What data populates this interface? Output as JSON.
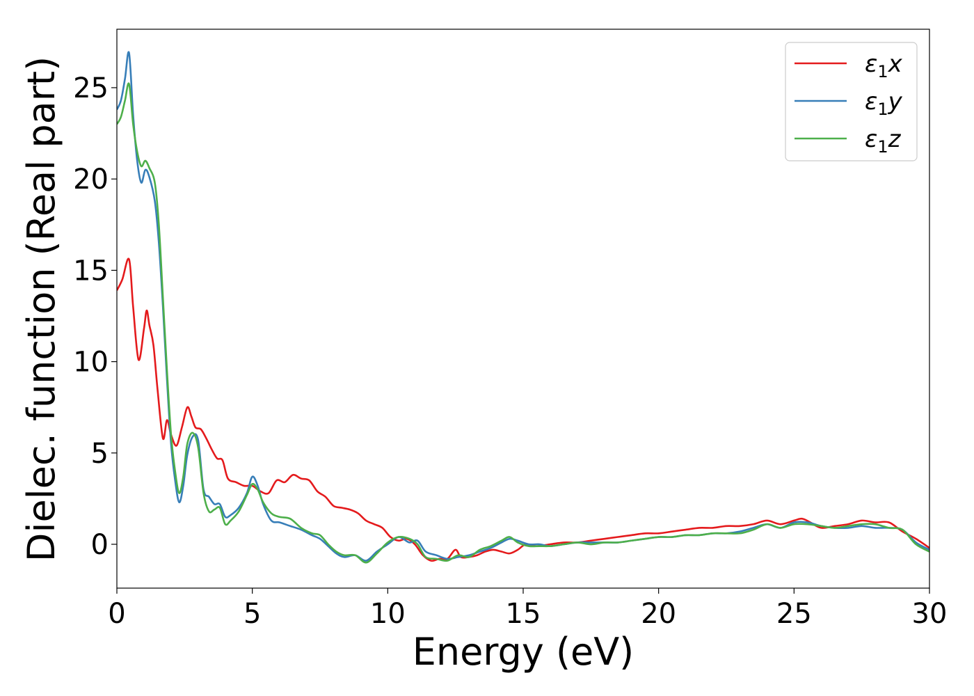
{
  "chart_data": {
    "type": "line",
    "title": "",
    "xlabel": "Energy (eV)",
    "ylabel": "Dielec. function (Real part)",
    "xlim": [
      0,
      30
    ],
    "ylim": [
      -2.4,
      28.2
    ],
    "xticks": [
      0,
      5,
      10,
      15,
      20,
      25,
      30
    ],
    "yticks": [
      0,
      5,
      10,
      15,
      20,
      25
    ],
    "grid": false,
    "legend_position": "top-right",
    "series": [
      {
        "name": "ε₁x",
        "legend_base": "ε",
        "legend_sub": "1",
        "legend_suffix": "x",
        "color": "#e41a1c",
        "x": [
          0,
          0.2,
          0.45,
          0.6,
          0.8,
          1.0,
          1.1,
          1.2,
          1.35,
          1.5,
          1.7,
          1.85,
          2.0,
          2.2,
          2.4,
          2.6,
          2.75,
          2.9,
          3.1,
          3.3,
          3.5,
          3.7,
          3.9,
          4.1,
          4.4,
          4.7,
          5.0,
          5.3,
          5.6,
          5.9,
          6.2,
          6.5,
          6.8,
          7.1,
          7.4,
          7.7,
          8.0,
          8.3,
          8.6,
          8.9,
          9.2,
          9.5,
          9.8,
          10.1,
          10.4,
          10.7,
          11.0,
          11.3,
          11.6,
          11.9,
          12.2,
          12.5,
          12.7,
          13.0,
          13.3,
          13.6,
          13.9,
          14.2,
          14.5,
          14.8,
          15.1,
          15.5,
          16.0,
          16.5,
          17.0,
          17.5,
          18.0,
          18.5,
          19.0,
          19.5,
          20.0,
          20.5,
          21.0,
          21.5,
          22.0,
          22.5,
          23.0,
          23.5,
          24.0,
          24.5,
          25.0,
          25.3,
          25.6,
          26.0,
          26.5,
          27.0,
          27.5,
          28.0,
          28.5,
          29.0,
          29.5,
          30.0
        ],
        "values": [
          13.9,
          14.5,
          15.6,
          13.0,
          10.1,
          11.8,
          12.8,
          12.0,
          10.9,
          8.5,
          5.8,
          6.8,
          6.0,
          5.4,
          6.4,
          7.5,
          7.0,
          6.4,
          6.3,
          5.8,
          5.2,
          4.7,
          4.6,
          3.6,
          3.4,
          3.2,
          3.2,
          2.9,
          2.8,
          3.5,
          3.4,
          3.8,
          3.6,
          3.5,
          2.9,
          2.6,
          2.1,
          2.0,
          1.9,
          1.7,
          1.3,
          1.1,
          0.9,
          0.4,
          0.2,
          0.3,
          0.0,
          -0.6,
          -0.9,
          -0.8,
          -0.8,
          -0.3,
          -0.7,
          -0.7,
          -0.6,
          -0.4,
          -0.3,
          -0.4,
          -0.5,
          -0.3,
          0.0,
          -0.1,
          0.0,
          0.1,
          0.1,
          0.2,
          0.3,
          0.4,
          0.5,
          0.6,
          0.6,
          0.7,
          0.8,
          0.9,
          0.9,
          1.0,
          1.0,
          1.1,
          1.3,
          1.1,
          1.3,
          1.4,
          1.2,
          0.9,
          1.0,
          1.1,
          1.3,
          1.2,
          1.2,
          0.7,
          0.3,
          -0.2
        ]
      },
      {
        "name": "ε₁y",
        "legend_base": "ε",
        "legend_sub": "1",
        "legend_suffix": "y",
        "color": "#377eb8",
        "x": [
          0,
          0.15,
          0.3,
          0.45,
          0.6,
          0.75,
          0.9,
          1.05,
          1.2,
          1.4,
          1.55,
          1.7,
          1.85,
          2.0,
          2.15,
          2.3,
          2.45,
          2.6,
          2.8,
          3.0,
          3.2,
          3.4,
          3.6,
          3.8,
          4.0,
          4.2,
          4.5,
          4.8,
          5.0,
          5.2,
          5.4,
          5.7,
          6.0,
          6.4,
          6.8,
          7.2,
          7.5,
          7.8,
          8.1,
          8.4,
          8.8,
          9.2,
          9.6,
          10.0,
          10.4,
          10.8,
          11.1,
          11.4,
          11.8,
          12.2,
          12.6,
          13.0,
          13.4,
          13.8,
          14.2,
          14.5,
          14.8,
          15.2,
          15.6,
          16.0,
          16.5,
          17.0,
          17.5,
          18.0,
          18.5,
          19.0,
          19.5,
          20.0,
          20.5,
          21.0,
          21.5,
          22.0,
          22.5,
          23.0,
          23.5,
          24.0,
          24.5,
          25.0,
          25.5,
          26.0,
          26.5,
          27.0,
          27.5,
          28.0,
          28.5,
          29.0,
          29.5,
          30.0
        ],
        "values": [
          23.8,
          24.3,
          25.5,
          26.9,
          23.5,
          21.0,
          19.8,
          20.5,
          20.1,
          18.8,
          16.5,
          13.0,
          9.0,
          5.5,
          3.5,
          2.3,
          3.2,
          4.9,
          5.9,
          5.7,
          3.0,
          2.6,
          2.2,
          2.2,
          1.5,
          1.6,
          2.0,
          2.8,
          3.7,
          3.2,
          2.2,
          1.3,
          1.2,
          1.0,
          0.8,
          0.5,
          0.3,
          -0.1,
          -0.5,
          -0.7,
          -0.6,
          -0.9,
          -0.4,
          0.0,
          0.4,
          0.1,
          0.2,
          -0.4,
          -0.6,
          -0.8,
          -0.7,
          -0.6,
          -0.4,
          -0.2,
          0.1,
          0.3,
          0.2,
          0.0,
          0.0,
          -0.1,
          0.0,
          0.1,
          0.1,
          0.1,
          0.1,
          0.2,
          0.3,
          0.4,
          0.4,
          0.5,
          0.5,
          0.6,
          0.6,
          0.7,
          0.9,
          1.1,
          0.9,
          1.2,
          1.2,
          1.0,
          0.9,
          0.9,
          1.0,
          0.9,
          0.9,
          0.8,
          0.1,
          -0.3
        ]
      },
      {
        "name": "ε₁z",
        "legend_base": "ε",
        "legend_sub": "1",
        "legend_suffix": "z",
        "color": "#4daf4a",
        "x": [
          0,
          0.15,
          0.3,
          0.45,
          0.6,
          0.75,
          0.9,
          1.05,
          1.2,
          1.4,
          1.55,
          1.7,
          1.85,
          2.0,
          2.15,
          2.3,
          2.45,
          2.6,
          2.8,
          3.0,
          3.2,
          3.4,
          3.6,
          3.8,
          4.0,
          4.2,
          4.5,
          4.8,
          5.0,
          5.2,
          5.4,
          5.7,
          6.0,
          6.4,
          6.8,
          7.2,
          7.5,
          7.8,
          8.1,
          8.4,
          8.8,
          9.2,
          9.6,
          10.0,
          10.4,
          10.8,
          11.1,
          11.4,
          11.8,
          12.2,
          12.6,
          13.0,
          13.4,
          13.8,
          14.2,
          14.5,
          14.8,
          15.2,
          15.6,
          16.0,
          16.5,
          17.0,
          17.5,
          18.0,
          18.5,
          19.0,
          19.5,
          20.0,
          20.5,
          21.0,
          21.5,
          22.0,
          22.5,
          23.0,
          23.5,
          24.0,
          24.5,
          25.0,
          25.5,
          26.0,
          26.5,
          27.0,
          27.5,
          28.0,
          28.5,
          29.0,
          29.5,
          30.0
        ],
        "values": [
          23.0,
          23.4,
          24.3,
          25.2,
          23.0,
          21.5,
          20.7,
          21.0,
          20.6,
          19.8,
          17.5,
          13.5,
          9.5,
          6.0,
          4.0,
          2.8,
          3.7,
          5.5,
          6.1,
          5.3,
          2.8,
          1.8,
          1.9,
          2.0,
          1.1,
          1.3,
          1.8,
          2.7,
          3.3,
          3.0,
          2.3,
          1.7,
          1.5,
          1.4,
          0.9,
          0.6,
          0.5,
          0.0,
          -0.4,
          -0.6,
          -0.6,
          -1.0,
          -0.5,
          0.1,
          0.4,
          0.3,
          0.0,
          -0.7,
          -0.8,
          -0.9,
          -0.6,
          -0.7,
          -0.3,
          -0.1,
          0.2,
          0.4,
          0.1,
          -0.1,
          -0.1,
          -0.1,
          0.0,
          0.1,
          0.0,
          0.1,
          0.1,
          0.2,
          0.3,
          0.4,
          0.4,
          0.5,
          0.5,
          0.6,
          0.6,
          0.6,
          0.8,
          1.1,
          0.9,
          1.1,
          1.1,
          1.0,
          0.9,
          1.0,
          1.1,
          1.1,
          0.9,
          0.8,
          0.0,
          -0.4
        ]
      }
    ]
  }
}
